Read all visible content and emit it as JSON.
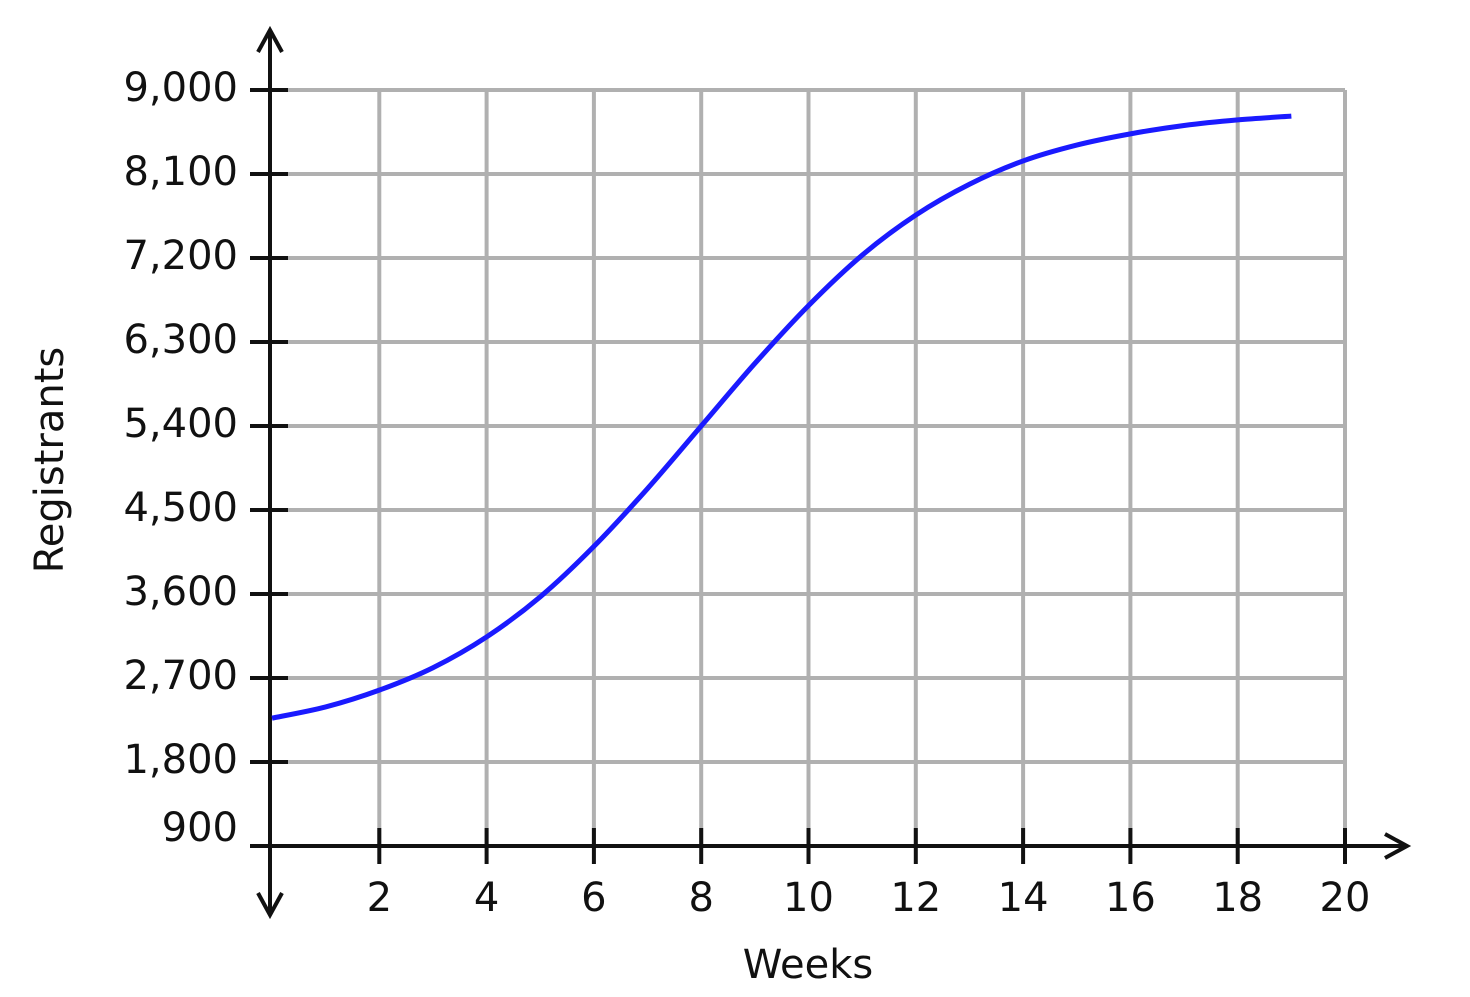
{
  "chart_data": {
    "type": "line",
    "x_label": "Weeks",
    "y_label": "Registrants",
    "x": [
      0,
      1,
      2,
      3,
      4,
      5,
      6,
      7,
      8,
      9,
      10,
      11,
      12,
      13,
      14,
      15,
      16,
      17,
      18,
      19
    ],
    "series": [
      {
        "name": "Registrants",
        "color": "#1a1aff",
        "values": [
          2270,
          2390,
          2570,
          2810,
          3140,
          3570,
          4110,
          4730,
          5400,
          6070,
          6690,
          7230,
          7660,
          7990,
          8240,
          8410,
          8530,
          8620,
          8680,
          8720
        ]
      }
    ],
    "xlim": [
      0,
      20
    ],
    "xticks": [
      2,
      4,
      6,
      8,
      10,
      12,
      14,
      16,
      18,
      20
    ],
    "ylim": [
      900,
      9000
    ],
    "yticks": [
      900,
      {
        "value": 1800,
        "label": "1,800"
      },
      {
        "value": 2700,
        "label": "2,700"
      },
      {
        "value": 3600,
        "label": "3,600"
      },
      {
        "value": 4500,
        "label": "4,500"
      },
      {
        "value": 5400,
        "label": "5,400"
      },
      {
        "value": 6300,
        "label": "6,300"
      },
      {
        "value": 7200,
        "label": "7,200"
      },
      {
        "value": 8100,
        "label": "8,100"
      },
      {
        "value": 9000,
        "label": "9,000"
      }
    ],
    "grid": true
  }
}
